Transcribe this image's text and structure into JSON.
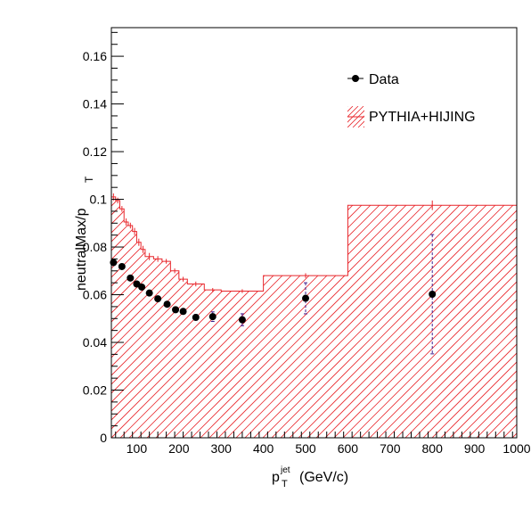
{
  "chart_data": {
    "type": "scatter",
    "xlabel_parts": {
      "main": "p",
      "sub": "T",
      "sup": "jet",
      "unit": "(GeV/c)"
    },
    "ylabel": "neutralMax/p",
    "ylabel_sub": "T",
    "xlim": [
      40,
      1000
    ],
    "ylim": [
      0,
      0.172
    ],
    "x_ticks": [
      100,
      200,
      300,
      400,
      500,
      600,
      700,
      800,
      900,
      1000
    ],
    "y_ticks": [
      0,
      0.02,
      0.04,
      0.06,
      0.08,
      0.1,
      0.12,
      0.14,
      0.16
    ],
    "y_tick_labels": [
      "0",
      "0.02",
      "0.04",
      "0.06",
      "0.08",
      "0.1",
      "0.12",
      "0.14",
      "0.16"
    ],
    "legend": {
      "placement": "top-right",
      "entries": [
        "Data",
        "PYTHIA+HIJING"
      ]
    },
    "series": [
      {
        "name": "Data",
        "kind": "points-with-errors",
        "color": "#000000",
        "error_color": "#3d1a8c",
        "x": [
          45,
          65,
          85,
          100,
          112,
          130,
          150,
          172,
          192,
          210,
          240,
          280,
          350,
          500,
          800
        ],
        "y": [
          0.0735,
          0.0718,
          0.067,
          0.0645,
          0.0632,
          0.0607,
          0.0583,
          0.056,
          0.0537,
          0.053,
          0.0505,
          0.0508,
          0.0495,
          0.0585,
          0.0602
        ],
        "err": [
          0.0012,
          0.001,
          0.001,
          0.001,
          0.001,
          0.001,
          0.001,
          0.001,
          0.001,
          0.001,
          0.0012,
          0.002,
          0.0025,
          0.0065,
          0.025
        ]
      },
      {
        "name": "PYTHIA+HIJING",
        "kind": "hatched-histogram",
        "color": "#e8262b",
        "edges": [
          40,
          50,
          60,
          70,
          80,
          90,
          100,
          110,
          120,
          140,
          160,
          180,
          200,
          220,
          260,
          300,
          400,
          600,
          1000
        ],
        "values": [
          0.101,
          0.0995,
          0.096,
          0.0905,
          0.089,
          0.0865,
          0.082,
          0.079,
          0.076,
          0.075,
          0.074,
          0.07,
          0.0665,
          0.0645,
          0.062,
          0.0615,
          0.068,
          0.0975
        ],
        "err": [
          0.0015,
          0.0012,
          0.0012,
          0.0015,
          0.0012,
          0.0015,
          0.0015,
          0.0015,
          0.0015,
          0.0012,
          0.001,
          0.001,
          0.001,
          0.001,
          0.0008,
          0.0008,
          0.001,
          0.002
        ]
      }
    ]
  }
}
